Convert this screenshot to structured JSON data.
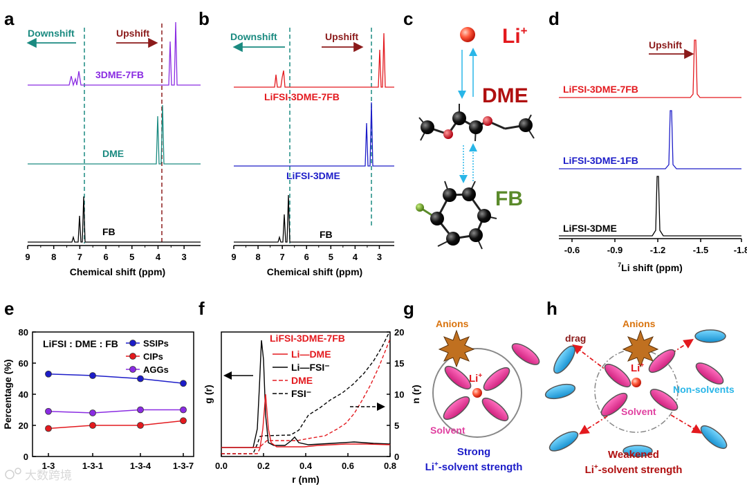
{
  "panel_letters": [
    "a",
    "b",
    "c",
    "d",
    "e",
    "f",
    "g",
    "h"
  ],
  "colors": {
    "teal": "#1a8a80",
    "darkred": "#8b1a1a",
    "purple": "#8a2be2",
    "red": "#e3191e",
    "blue": "#1c1cc8",
    "black": "#000000",
    "green": "#5a8a2a",
    "magenta": "#e040a0",
    "cyan": "#29b6e8",
    "orange": "#d9730d"
  },
  "panel_a": {
    "downshift": "Downshift",
    "upshift": "Upshift",
    "xlabel": "Chemical shift (ppm)",
    "ticks": [
      "9",
      "8",
      "7",
      "6",
      "5",
      "4",
      "3"
    ],
    "traces": [
      {
        "label": "3DME-7FB"
      },
      {
        "label": "DME"
      },
      {
        "label": "FB"
      }
    ]
  },
  "panel_b": {
    "downshift": "Downshift",
    "upshift": "Upshift",
    "xlabel": "Chemical shift (ppm)",
    "ticks": [
      "9",
      "8",
      "7",
      "6",
      "5",
      "4",
      "3"
    ],
    "traces": [
      {
        "label": "LiFSI-3DME-7FB"
      },
      {
        "label": "LiFSI-3DME"
      },
      {
        "label": "FB"
      }
    ]
  },
  "panel_c": {
    "li": "Li",
    "li_sup": "+",
    "dme": "DME",
    "fb": "FB"
  },
  "panel_d": {
    "upshift": "Upshift",
    "xlabel_sup": "7",
    "xlabel": "Li shift (ppm)",
    "ticks": [
      "-0.6",
      "-0.9",
      "-1.2",
      "-1.5",
      "-1.8"
    ],
    "traces": [
      {
        "label": "LiFSI-3DME-7FB"
      },
      {
        "label": "LiFSI-3DME-1FB"
      },
      {
        "label": "LiFSI-3DME"
      }
    ]
  },
  "chart_data": [
    {
      "type": "line",
      "title": "LiFSI : DME : FB",
      "xlabel": "",
      "ylabel": "Percentage (%)",
      "categories": [
        "1-3",
        "1-3-1",
        "1-3-4",
        "1-3-7"
      ],
      "ylim": [
        0,
        80
      ],
      "yticks": [
        "0",
        "20",
        "40",
        "60",
        "80"
      ],
      "series": [
        {
          "name": "SSIPs",
          "values": [
            53,
            52,
            50,
            47
          ]
        },
        {
          "name": "CIPs",
          "values": [
            18,
            20,
            20,
            23
          ]
        },
        {
          "name": "AGGs",
          "values": [
            29,
            28,
            30,
            30
          ]
        }
      ]
    },
    {
      "type": "line",
      "title": "LiFSI-3DME-7FB",
      "xlabel": "r (nm)",
      "ylabel": "g (r)",
      "ylabel2": "n (r)",
      "xlim": [
        0,
        0.8
      ],
      "ylim2": [
        0,
        20
      ],
      "xticks": [
        "0.0",
        "0.2",
        "0.4",
        "0.6",
        "0.8"
      ],
      "yticks2": [
        "0",
        "5",
        "10",
        "15",
        "20"
      ],
      "legend": [
        "Li—DME",
        "Li—FSI⁻",
        "DME",
        "FSI⁻"
      ]
    }
  ],
  "panel_g": {
    "anions": "Anions",
    "li": "Li",
    "li_sup": "+",
    "solvent": "Solvent",
    "caption1": "Strong",
    "caption2_pre": "Li",
    "caption2_sup": "+",
    "caption2_post": "-solvent strength"
  },
  "panel_h": {
    "anions": "Anions",
    "drag": "drag",
    "li": "Li",
    "li_sup": "+",
    "solvent": "Solvent",
    "nonsolvents": "Non-solvents",
    "caption1": "Weakened",
    "caption2_pre": "Li",
    "caption2_sup": "+",
    "caption2_post": "-solvent strength"
  },
  "watermark": "大数跨境"
}
